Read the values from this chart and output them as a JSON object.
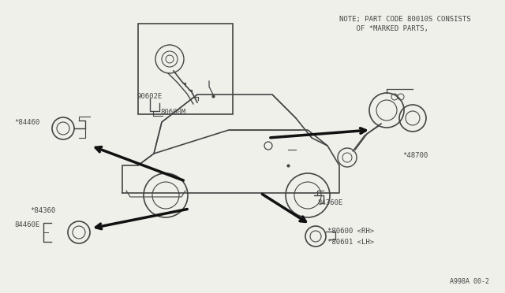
{
  "bg_color": "#f0f0eb",
  "line_color": "#444444",
  "note_text_line1": "NOTE; PART CODE 80010S CONSISTS",
  "note_text_line2": "    OF *MARKED PARTS,",
  "diagram_id": "A998A 00-2",
  "fig_width": 6.4,
  "fig_height": 3.72,
  "dpi": 100
}
